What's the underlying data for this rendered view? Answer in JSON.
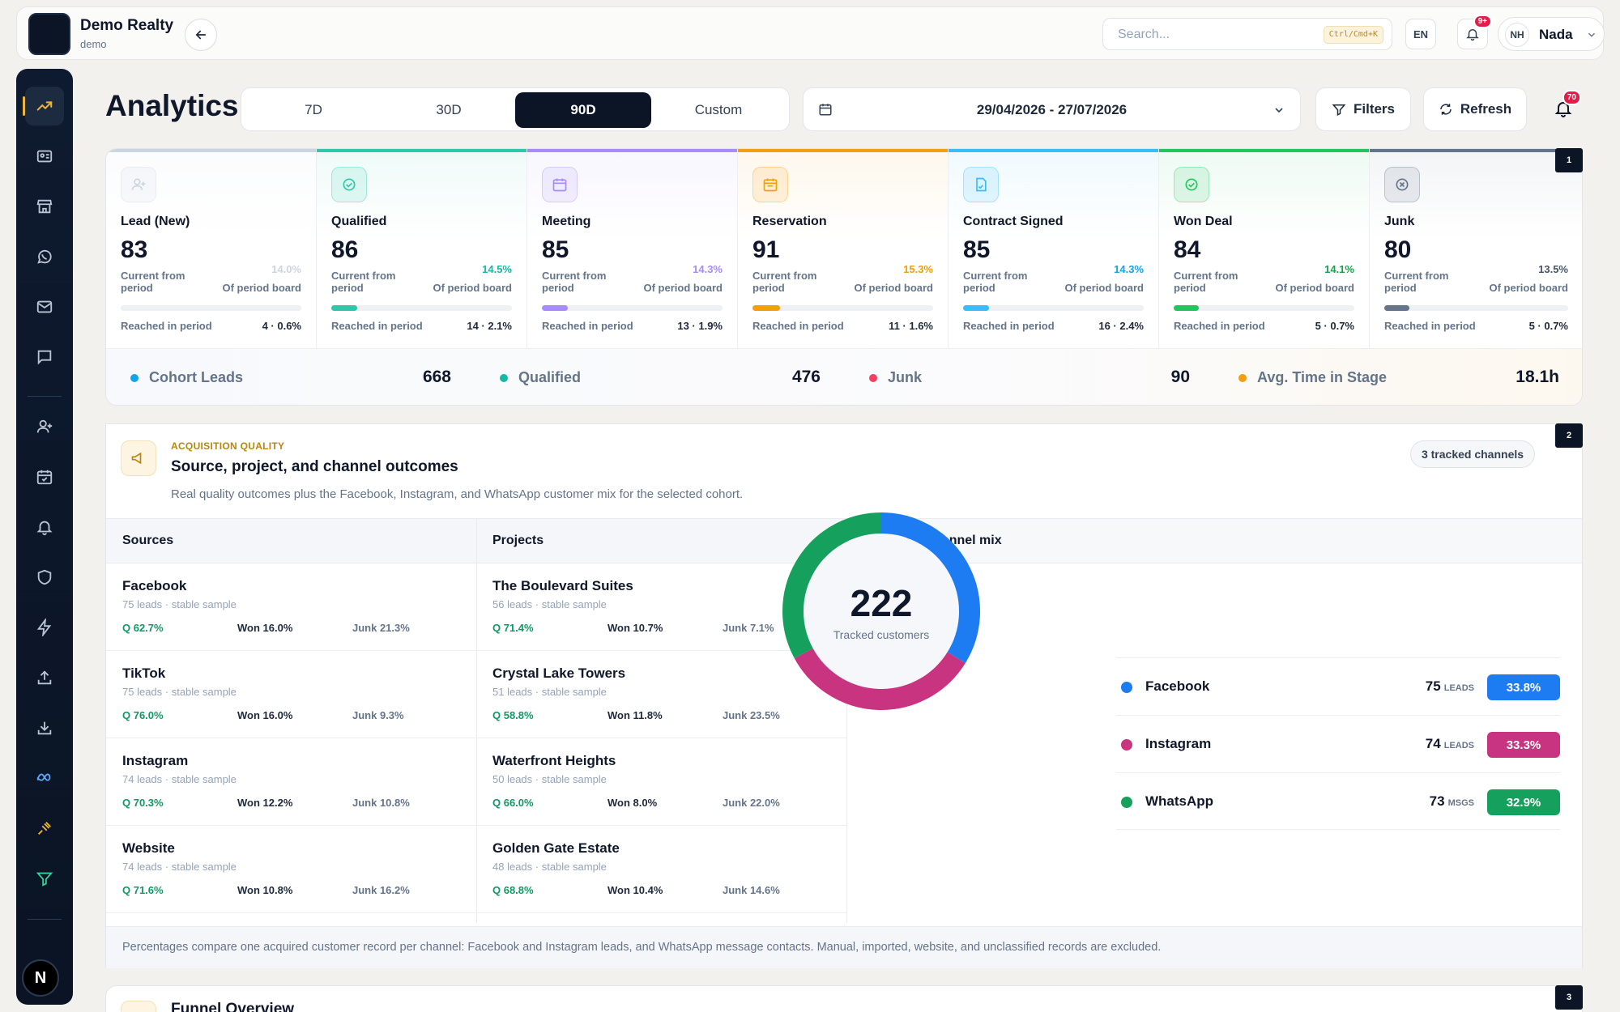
{
  "brand": {
    "name": "Demo Realty",
    "sub": "demo"
  },
  "header": {
    "search_placeholder": "Search...",
    "shortcut": "Ctrl/Cmd+K",
    "lang": "EN",
    "bell_badge": "9+",
    "user_initials": "NH",
    "user_name": "Nada"
  },
  "sidebar": {
    "items": [
      "trend-icon",
      "contact-card-icon",
      "store-icon",
      "whatsapp-icon",
      "mail-icon",
      "chat-icon",
      "add-user-icon",
      "calendar-check-icon",
      "bell-icon",
      "shield-icon",
      "lightning-icon",
      "upload-icon",
      "download-icon",
      "meta-icon",
      "plug-icon",
      "filter-icon"
    ],
    "avatar_letter": "N"
  },
  "page": {
    "title": "Analytics"
  },
  "period_tabs": [
    {
      "label": "7D"
    },
    {
      "label": "30D"
    },
    {
      "label": "90D",
      "active": true
    },
    {
      "label": "Custom"
    }
  ],
  "date_range": "29/04/2026 - 27/07/2026",
  "toolbar": {
    "filters": "Filters",
    "refresh": "Refresh",
    "notif_badge": "70"
  },
  "section_numbers": [
    "1",
    "2",
    "3"
  ],
  "stages": [
    {
      "name": "Lead (New)",
      "value": "83",
      "pct": "14.0%",
      "current_label": "Current from period",
      "of_label": "Of period board",
      "progress": 0.0,
      "reached_label": "Reached in period",
      "reached": "4 · 0.6%",
      "color": "#cbd5e1",
      "pct_color": "#cbd5e1"
    },
    {
      "name": "Qualified",
      "value": "86",
      "pct": "14.5%",
      "current_label": "Current from period",
      "of_label": "Of period board",
      "progress": 0.145,
      "reached_label": "Reached in period",
      "reached": "14 · 2.1%",
      "color": "#2fc7a9",
      "pct_color": "#14b8a6"
    },
    {
      "name": "Meeting",
      "value": "85",
      "pct": "14.3%",
      "current_label": "Current from period",
      "of_label": "Of period board",
      "progress": 0.143,
      "reached_label": "Reached in period",
      "reached": "13 · 1.9%",
      "color": "#a78bfa",
      "pct_color": "#a78bfa"
    },
    {
      "name": "Reservation",
      "value": "91",
      "pct": "15.3%",
      "current_label": "Current from period",
      "of_label": "Of period board",
      "progress": 0.153,
      "reached_label": "Reached in period",
      "reached": "11 · 1.6%",
      "color": "#f59e0b",
      "pct_color": "#f59e0b"
    },
    {
      "name": "Contract Signed",
      "value": "85",
      "pct": "14.3%",
      "current_label": "Current from period",
      "of_label": "Of period board",
      "progress": 0.143,
      "reached_label": "Reached in period",
      "reached": "16 · 2.4%",
      "color": "#38bdf8",
      "pct_color": "#0ea5e9"
    },
    {
      "name": "Won Deal",
      "value": "84",
      "pct": "14.1%",
      "current_label": "Current from period",
      "of_label": "Of period board",
      "progress": 0.141,
      "reached_label": "Reached in period",
      "reached": "5 · 0.7%",
      "color": "#22c55e",
      "pct_color": "#16a34a"
    },
    {
      "name": "Junk",
      "value": "80",
      "pct": "13.5%",
      "current_label": "Current from period",
      "of_label": "Of period board",
      "progress": 0.135,
      "reached_label": "Reached in period",
      "reached": "5 · 0.7%",
      "color": "#64748b",
      "pct_color": "#475569"
    }
  ],
  "summary": [
    {
      "label": "Cohort Leads",
      "value": "668",
      "color": "#0ea5e9"
    },
    {
      "label": "Qualified",
      "value": "476",
      "color": "#14b8a6"
    },
    {
      "label": "Junk",
      "value": "90",
      "color": "#f43f5e"
    },
    {
      "label": "Avg. Time in Stage",
      "value": "18.1h",
      "color": "#f59e0b"
    }
  ],
  "acquisition": {
    "eyebrow": "ACQUISITION QUALITY",
    "title": "Source, project, and channel outcomes",
    "desc": "Real quality outcomes plus the Facebook, Instagram, and WhatsApp customer mix for the selected cohort.",
    "chip": "3 tracked channels",
    "col_sources": "Sources",
    "col_projects": "Projects",
    "col_mix": "Customer channel mix",
    "sources": [
      {
        "name": "Facebook",
        "sub": "75 leads · stable sample",
        "q": "Q 62.7%",
        "won": "Won 16.0%",
        "junk": "Junk 21.3%"
      },
      {
        "name": "TikTok",
        "sub": "75 leads · stable sample",
        "q": "Q 76.0%",
        "won": "Won 16.0%",
        "junk": "Junk 9.3%"
      },
      {
        "name": "Instagram",
        "sub": "74 leads · stable sample",
        "q": "Q 70.3%",
        "won": "Won 12.2%",
        "junk": "Junk 10.8%"
      },
      {
        "name": "Website",
        "sub": "74 leads · stable sample",
        "q": "Q 71.6%",
        "won": "Won 10.8%",
        "junk": "Junk 16.2%"
      }
    ],
    "projects": [
      {
        "name": "The Boulevard Suites",
        "sub": "56 leads · stable sample",
        "q": "Q 71.4%",
        "won": "Won 10.7%",
        "junk": "Junk 7.1%"
      },
      {
        "name": "Crystal Lake Towers",
        "sub": "51 leads · stable sample",
        "q": "Q 58.8%",
        "won": "Won 11.8%",
        "junk": "Junk 23.5%"
      },
      {
        "name": "Waterfront Heights",
        "sub": "50 leads · stable sample",
        "q": "Q 66.0%",
        "won": "Won 8.0%",
        "junk": "Junk 22.0%"
      },
      {
        "name": "Golden Gate Estate",
        "sub": "48 leads · stable sample",
        "q": "Q 68.8%",
        "won": "Won 10.4%",
        "junk": "Junk 14.6%"
      }
    ],
    "mix_total": "222",
    "mix_total_label": "Tracked customers",
    "channels": [
      {
        "name": "Facebook",
        "value": "75",
        "unit": "LEADS",
        "pct": "33.8%",
        "share": 33.8,
        "color": "#1d7cf2"
      },
      {
        "name": "Instagram",
        "value": "74",
        "unit": "LEADS",
        "pct": "33.3%",
        "share": 33.3,
        "color": "#c8347f"
      },
      {
        "name": "WhatsApp",
        "value": "73",
        "unit": "MSGS",
        "pct": "32.9%",
        "share": 32.9,
        "color": "#16a05d"
      }
    ],
    "footnote": "Percentages compare one acquired customer record per channel: Facebook and Instagram leads, and WhatsApp message contacts. Manual, imported, website, and unclassified records are excluded."
  },
  "funnel": {
    "title": "Funnel Overview"
  }
}
